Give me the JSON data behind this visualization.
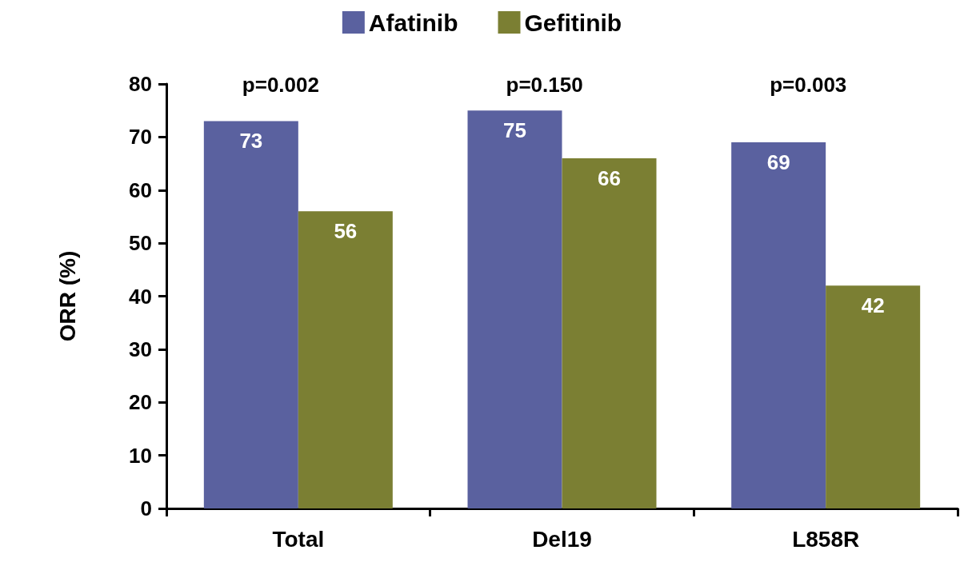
{
  "chart_data": {
    "type": "bar",
    "ylabel": "ORR (%)",
    "categories": [
      "Total",
      "Del19",
      "L858R"
    ],
    "series": [
      {
        "name": "Afatinib",
        "color": "#5a619f",
        "values": [
          73,
          75,
          69
        ]
      },
      {
        "name": "Gefitinib",
        "color": "#7b7f33",
        "values": [
          56,
          66,
          42
        ]
      }
    ],
    "ylim": [
      0,
      80
    ],
    "yticks": [
      0,
      10,
      20,
      30,
      40,
      50,
      60,
      70,
      80
    ],
    "data_labels": true,
    "grid": false,
    "legend": "top",
    "annotations": [
      "p=0.002",
      "p=0.150",
      "p=0.003"
    ]
  }
}
